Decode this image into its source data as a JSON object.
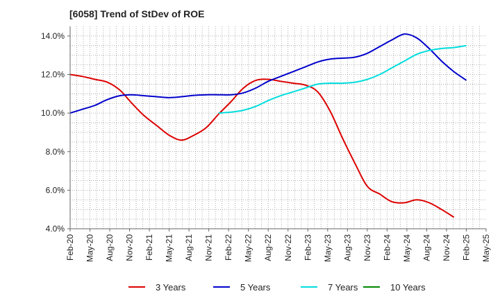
{
  "chart_data": {
    "type": "line",
    "title": "[6058]  Trend of StDev of ROE",
    "xlabel": "",
    "ylabel": "",
    "x_ticks": [
      "Feb-20",
      "May-20",
      "Aug-20",
      "Nov-20",
      "Feb-21",
      "May-21",
      "Aug-21",
      "Nov-21",
      "Feb-22",
      "May-22",
      "Aug-22",
      "Nov-22",
      "Feb-23",
      "May-23",
      "Aug-23",
      "Nov-23",
      "Feb-24",
      "May-24",
      "Aug-24",
      "Nov-24",
      "Feb-25",
      "May-25"
    ],
    "y_ticks": [
      "4.0%",
      "6.0%",
      "8.0%",
      "10.0%",
      "12.0%",
      "14.0%"
    ],
    "ylim": [
      4.0,
      14.5
    ],
    "grid": true,
    "legend_position": "bottom",
    "series": [
      {
        "name": "3 Years",
        "color": "#dd0000",
        "points": [
          [
            0,
            12.0
          ],
          [
            1,
            11.9
          ],
          [
            2,
            11.75
          ],
          [
            3,
            11.6
          ],
          [
            4,
            11.2
          ],
          [
            5,
            10.5
          ],
          [
            6,
            9.85
          ],
          [
            7,
            9.35
          ],
          [
            8,
            8.85
          ],
          [
            9,
            8.6
          ],
          [
            10,
            8.85
          ],
          [
            11,
            9.25
          ],
          [
            12,
            9.95
          ],
          [
            13,
            10.6
          ],
          [
            14,
            11.3
          ],
          [
            15,
            11.7
          ],
          [
            16,
            11.75
          ],
          [
            17,
            11.65
          ],
          [
            18,
            11.55
          ],
          [
            19,
            11.45
          ],
          [
            20,
            11.1
          ],
          [
            21,
            10.1
          ],
          [
            22,
            8.7
          ],
          [
            23,
            7.4
          ],
          [
            24,
            6.2
          ],
          [
            25,
            5.8
          ],
          [
            26,
            5.4
          ],
          [
            27,
            5.35
          ],
          [
            28,
            5.5
          ],
          [
            29,
            5.35
          ],
          [
            30,
            5.0
          ],
          [
            31,
            4.6
          ]
        ]
      },
      {
        "name": "5 Years",
        "color": "#0000cc",
        "points": [
          [
            0,
            10.0
          ],
          [
            1,
            10.2
          ],
          [
            2,
            10.4
          ],
          [
            3,
            10.7
          ],
          [
            4,
            10.9
          ],
          [
            5,
            10.95
          ],
          [
            6,
            10.9
          ],
          [
            7,
            10.85
          ],
          [
            8,
            10.8
          ],
          [
            9,
            10.85
          ],
          [
            10,
            10.92
          ],
          [
            11,
            10.95
          ],
          [
            12,
            10.95
          ],
          [
            13,
            10.95
          ],
          [
            14,
            11.05
          ],
          [
            15,
            11.3
          ],
          [
            16,
            11.65
          ],
          [
            17,
            11.9
          ],
          [
            18,
            12.15
          ],
          [
            19,
            12.4
          ],
          [
            20,
            12.65
          ],
          [
            21,
            12.8
          ],
          [
            22,
            12.85
          ],
          [
            23,
            12.9
          ],
          [
            24,
            13.1
          ],
          [
            25,
            13.45
          ],
          [
            26,
            13.8
          ],
          [
            27,
            14.1
          ],
          [
            28,
            13.9
          ],
          [
            29,
            13.35
          ],
          [
            30,
            12.7
          ],
          [
            31,
            12.15
          ],
          [
            32,
            11.7
          ]
        ]
      },
      {
        "name": "7 Years",
        "color": "#00dddd",
        "points": [
          [
            12,
            10.0
          ],
          [
            13,
            10.05
          ],
          [
            14,
            10.15
          ],
          [
            15,
            10.35
          ],
          [
            16,
            10.65
          ],
          [
            17,
            10.9
          ],
          [
            18,
            11.1
          ],
          [
            19,
            11.3
          ],
          [
            20,
            11.5
          ],
          [
            21,
            11.55
          ],
          [
            22,
            11.55
          ],
          [
            23,
            11.6
          ],
          [
            24,
            11.75
          ],
          [
            25,
            12.0
          ],
          [
            26,
            12.35
          ],
          [
            27,
            12.7
          ],
          [
            28,
            13.05
          ],
          [
            29,
            13.25
          ],
          [
            30,
            13.35
          ],
          [
            31,
            13.4
          ],
          [
            32,
            13.5
          ]
        ]
      },
      {
        "name": "10 Years",
        "color": "#008800",
        "points": []
      }
    ]
  }
}
